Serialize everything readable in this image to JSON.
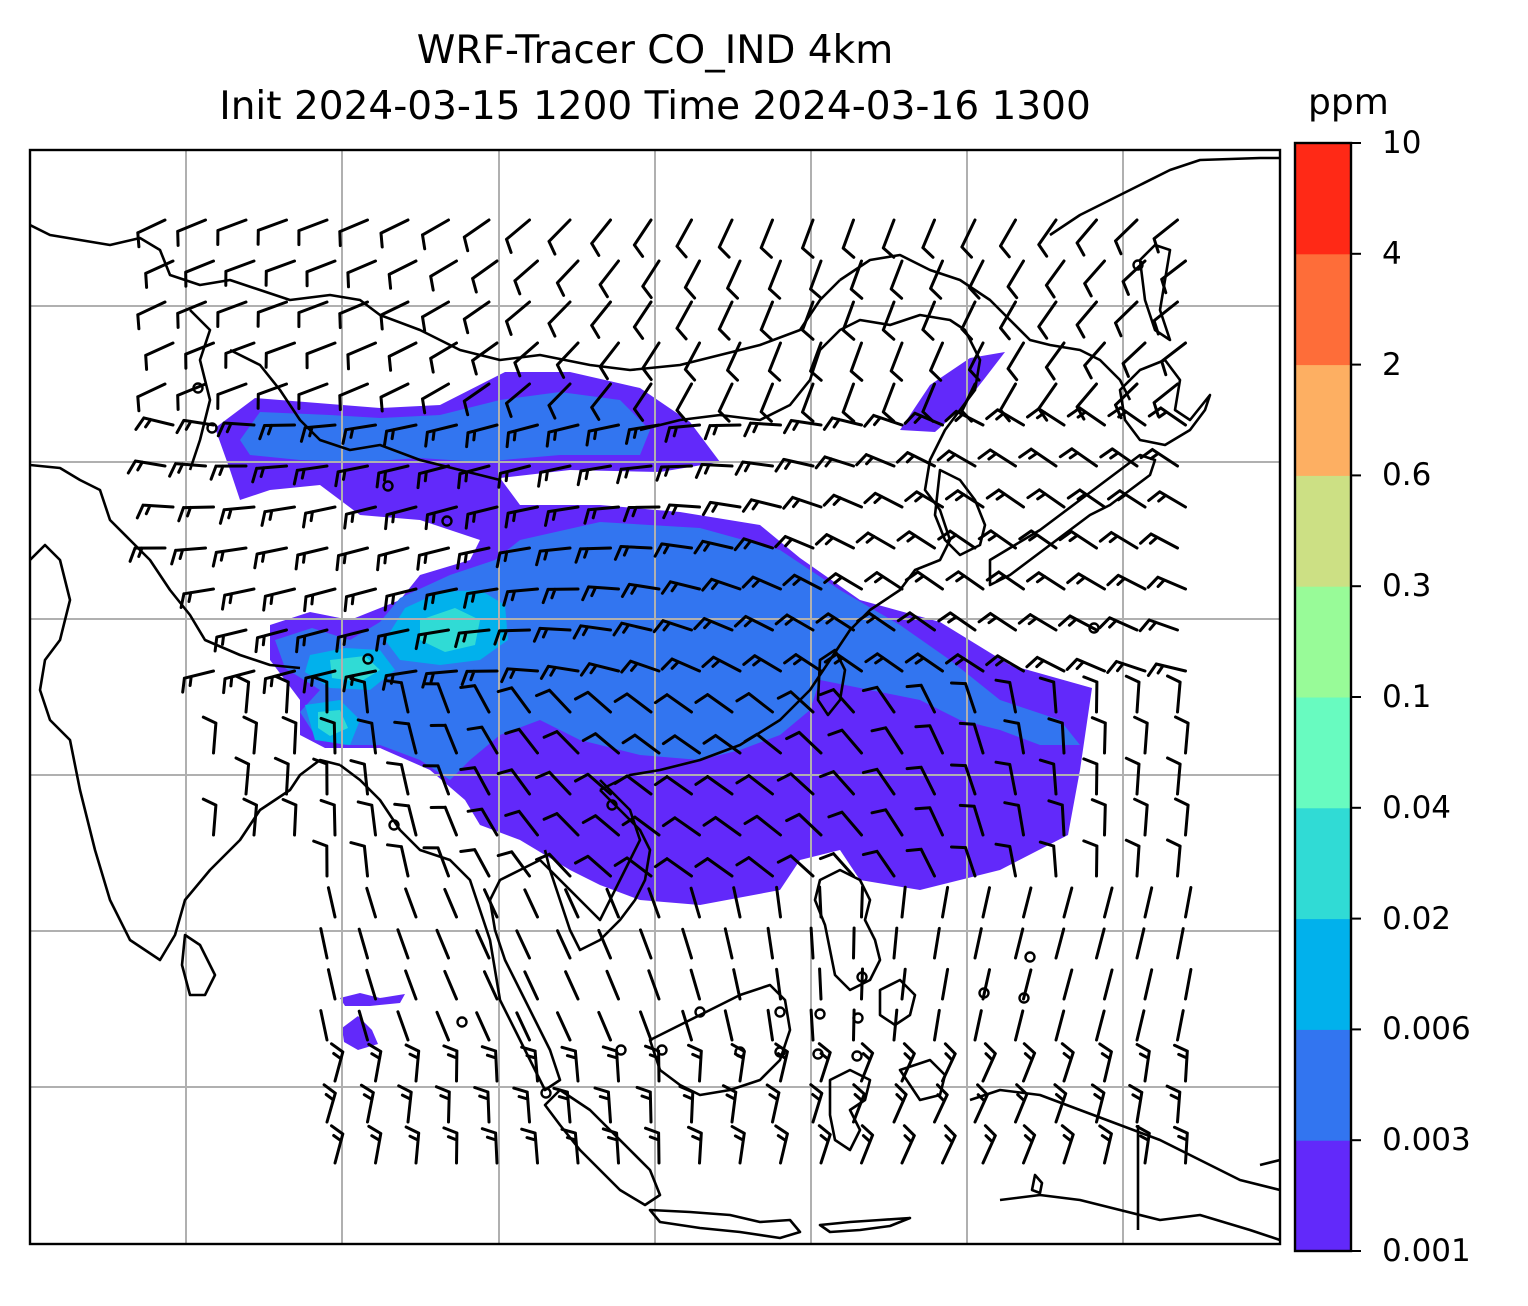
{
  "title": {
    "line1": "WRF-Tracer CO_IND 4km",
    "line2": "Init 2024-03-15 1200 Time 2024-03-16 1300"
  },
  "colorbar": {
    "units": "ppm",
    "levels": [
      "0.001",
      "0.003",
      "0.006",
      "0.02",
      "0.04",
      "0.1",
      "0.3",
      "0.6",
      "2",
      "4",
      "10"
    ],
    "colors": [
      "#6229fa",
      "#3275f0",
      "#01b1ec",
      "#30dbd5",
      "#68fbc0",
      "#98fb98",
      "#cce084",
      "#fdaf62",
      "#fe6d39",
      "#ff2916"
    ]
  },
  "map": {
    "coastline_color": "#000000",
    "gridline_color": "#b0b0b0",
    "wind_barb_color": "#000000",
    "background": "#ffffff"
  }
}
